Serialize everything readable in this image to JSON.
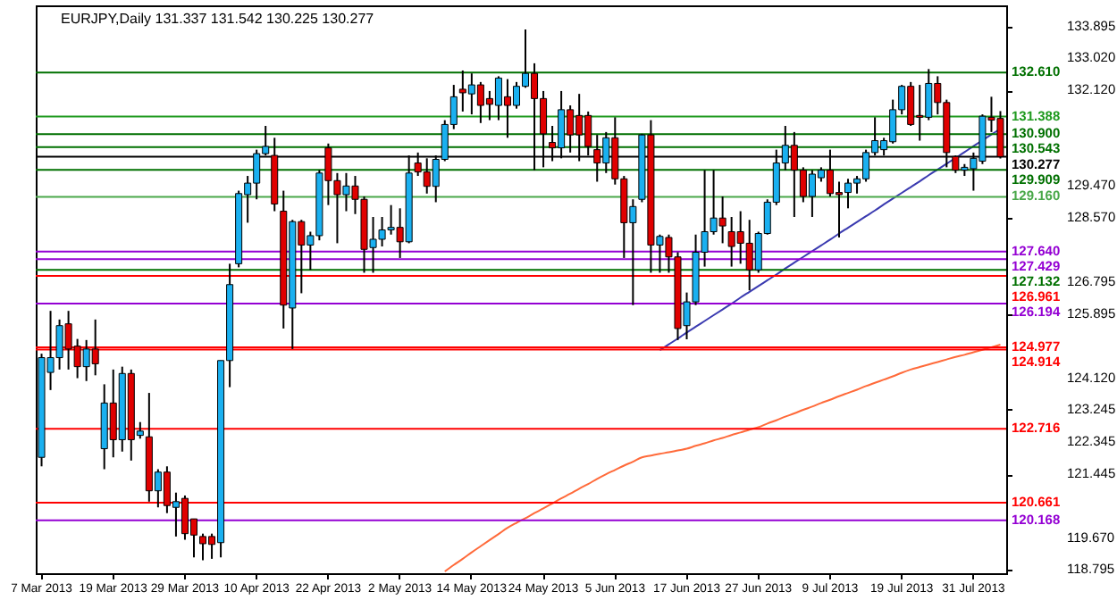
{
  "chart_data": {
    "type": "candlestick",
    "title": "EURJPY,Daily  131.337 131.542 130.225 130.277",
    "categories": [
      "7 Mar 2013",
      null,
      null,
      null,
      null,
      null,
      null,
      null,
      "19 Mar 2013",
      null,
      null,
      null,
      null,
      null,
      null,
      null,
      "29 Mar 2013",
      null,
      null,
      null,
      null,
      null,
      null,
      null,
      "10 Apr 2013",
      null,
      null,
      null,
      null,
      null,
      null,
      null,
      "22 Apr 2013",
      null,
      null,
      null,
      null,
      null,
      null,
      null,
      "2 May 2013",
      null,
      null,
      null,
      null,
      null,
      null,
      null,
      "14 May 2013",
      null,
      null,
      null,
      null,
      null,
      null,
      null,
      "24 May 2013",
      null,
      null,
      null,
      null,
      null,
      null,
      null,
      "5 Jun 2013",
      null,
      null,
      null,
      null,
      null,
      null,
      null,
      "17 Jun 2013",
      null,
      null,
      null,
      null,
      null,
      null,
      null,
      "27 Jun 2013",
      null,
      null,
      null,
      null,
      null,
      null,
      null,
      "9 Jul 2013",
      null,
      null,
      null,
      null,
      null,
      null,
      null,
      "19 Jul 2013",
      null,
      null,
      null,
      null,
      null,
      null,
      null,
      "31 Jul 2013",
      null,
      null,
      null
    ],
    "ohlc": [
      [
        121.92,
        124.8,
        121.67,
        124.69
      ],
      [
        124.28,
        125.99,
        123.79,
        124.69
      ],
      [
        124.69,
        125.75,
        124.36,
        125.58
      ],
      [
        125.63,
        125.99,
        124.36,
        124.93
      ],
      [
        125.01,
        125.21,
        124.12,
        124.44
      ],
      [
        124.44,
        125.18,
        124.04,
        124.93
      ],
      [
        124.93,
        125.75,
        124.2,
        124.52
      ],
      [
        122.16,
        123.95,
        121.59,
        123.43
      ],
      [
        123.43,
        124.36,
        121.92,
        122.41
      ],
      [
        122.41,
        124.44,
        122.08,
        124.25
      ],
      [
        124.25,
        124.36,
        121.83,
        122.41
      ],
      [
        122.53,
        122.9,
        122.44,
        122.65
      ],
      [
        122.49,
        123.71,
        120.69,
        120.99
      ],
      [
        120.99,
        121.59,
        120.53,
        121.51
      ],
      [
        121.51,
        121.67,
        120.37,
        120.58
      ],
      [
        120.53,
        120.94,
        119.72,
        120.69
      ],
      [
        120.78,
        120.86,
        119.63,
        119.8
      ],
      [
        120.21,
        120.21,
        119.14,
        119.76
      ],
      [
        119.72,
        119.8,
        119.06,
        119.52
      ],
      [
        119.72,
        119.8,
        119.1,
        119.5
      ],
      [
        119.55,
        124.61,
        119.14,
        124.61
      ],
      [
        124.61,
        127.3,
        123.87,
        126.72
      ],
      [
        127.3,
        129.33,
        127.2,
        129.25
      ],
      [
        129.22,
        129.74,
        128.44,
        129.54
      ],
      [
        129.54,
        130.47,
        129.09,
        130.36
      ],
      [
        130.36,
        131.13,
        130.31,
        130.56
      ],
      [
        130.31,
        130.8,
        128.76,
        128.96
      ],
      [
        128.76,
        129.33,
        125.5,
        126.15
      ],
      [
        126.07,
        128.52,
        124.93,
        128.47
      ],
      [
        128.47,
        128.52,
        126.48,
        127.82
      ],
      [
        127.82,
        128.19,
        127.13,
        128.08
      ],
      [
        128.08,
        129.9,
        127.95,
        129.82
      ],
      [
        130.52,
        130.64,
        128.93,
        129.61
      ],
      [
        129.61,
        129.82,
        127.87,
        129.22
      ],
      [
        129.22,
        129.82,
        128.76,
        129.46
      ],
      [
        129.46,
        129.74,
        128.68,
        129.09
      ],
      [
        129.09,
        129.17,
        127.05,
        127.7
      ],
      [
        127.75,
        128.6,
        127.05,
        127.98
      ],
      [
        127.98,
        128.6,
        127.78,
        128.24
      ],
      [
        128.24,
        128.93,
        128.11,
        128.31
      ],
      [
        128.31,
        128.84,
        127.46,
        127.91
      ],
      [
        127.91,
        130.31,
        127.87,
        129.82
      ],
      [
        130.1,
        130.39,
        129.74,
        129.85
      ],
      [
        129.85,
        130.23,
        129.25,
        129.45
      ],
      [
        129.45,
        130.31,
        129.01,
        130.2
      ],
      [
        130.2,
        131.29,
        130.15,
        131.17
      ],
      [
        131.17,
        132.27,
        131.04,
        131.94
      ],
      [
        132.15,
        132.67,
        131.53,
        132.05
      ],
      [
        132.02,
        132.59,
        131.45,
        132.27
      ],
      [
        132.27,
        132.35,
        131.21,
        131.7
      ],
      [
        131.89,
        132.1,
        131.29,
        131.73
      ],
      [
        131.7,
        132.51,
        131.29,
        132.46
      ],
      [
        131.94,
        132.43,
        130.8,
        131.7
      ],
      [
        131.7,
        132.35,
        131.61,
        132.23
      ],
      [
        132.23,
        133.81,
        132.19,
        132.59
      ],
      [
        132.59,
        132.87,
        129.9,
        131.89
      ],
      [
        131.89,
        132.1,
        129.98,
        130.91
      ],
      [
        130.67,
        131.13,
        130.15,
        130.52
      ],
      [
        130.52,
        132.1,
        130.23,
        131.58
      ],
      [
        131.58,
        131.7,
        130.39,
        130.88
      ],
      [
        131.42,
        132.02,
        130.15,
        130.88
      ],
      [
        131.42,
        131.53,
        130.31,
        130.56
      ],
      [
        130.47,
        130.88,
        129.58,
        130.1
      ],
      [
        130.1,
        130.96,
        129.82,
        130.8
      ],
      [
        130.8,
        131.37,
        129.5,
        129.66
      ],
      [
        129.66,
        129.74,
        127.46,
        128.44
      ],
      [
        128.44,
        129.09,
        126.15,
        128.89
      ],
      [
        129.09,
        130.91,
        129.01,
        130.88
      ],
      [
        130.88,
        131.29,
        127.05,
        127.82
      ],
      [
        127.82,
        128.11,
        127.05,
        128.06
      ],
      [
        128.03,
        128.11,
        127.05,
        127.49
      ],
      [
        127.49,
        127.62,
        125.18,
        125.5
      ],
      [
        125.58,
        126.5,
        125.2,
        126.24
      ],
      [
        126.24,
        128.11,
        126.15,
        127.62
      ],
      [
        127.62,
        129.9,
        127.22,
        128.19
      ],
      [
        128.19,
        129.9,
        128.11,
        128.57
      ],
      [
        128.57,
        129.17,
        127.87,
        128.35
      ],
      [
        128.19,
        128.6,
        127.22,
        127.78
      ],
      [
        128.19,
        128.76,
        127.3,
        127.87
      ],
      [
        127.87,
        128.52,
        126.56,
        127.13
      ],
      [
        127.13,
        128.19,
        127.05,
        128.14
      ],
      [
        128.14,
        129.09,
        128.11,
        129.01
      ],
      [
        129.01,
        130.47,
        128.93,
        130.1
      ],
      [
        130.1,
        131.13,
        129.9,
        130.59
      ],
      [
        130.59,
        130.96,
        128.6,
        129.9
      ],
      [
        129.9,
        129.98,
        129.01,
        129.17
      ],
      [
        129.17,
        129.9,
        128.6,
        129.79
      ],
      [
        129.69,
        129.98,
        129.58,
        129.9
      ],
      [
        129.9,
        130.47,
        129.17,
        129.25
      ],
      [
        129.28,
        129.58,
        128.03,
        129.22
      ],
      [
        129.28,
        129.66,
        128.84,
        129.54
      ],
      [
        129.54,
        129.74,
        129.25,
        129.66
      ],
      [
        129.66,
        130.47,
        129.58,
        130.39
      ],
      [
        130.39,
        131.37,
        130.31,
        130.72
      ],
      [
        130.47,
        130.8,
        130.31,
        130.72
      ],
      [
        130.69,
        131.86,
        130.64,
        131.58
      ],
      [
        131.58,
        132.27,
        131.45,
        132.23
      ],
      [
        132.23,
        132.35,
        131.13,
        131.17
      ],
      [
        131.42,
        132.27,
        130.72,
        131.37
      ],
      [
        131.37,
        132.71,
        131.29,
        132.31
      ],
      [
        132.31,
        132.51,
        131.45,
        131.78
      ],
      [
        131.78,
        131.86,
        129.98,
        130.39
      ],
      [
        130.28,
        130.31,
        129.82,
        129.9
      ],
      [
        129.9,
        130.07,
        129.74,
        129.98
      ],
      [
        129.94,
        130.39,
        129.33,
        130.23
      ],
      [
        130.15,
        131.45,
        130.07,
        131.4
      ],
      [
        131.37,
        131.94,
        130.96,
        131.29
      ],
      [
        131.337,
        131.542,
        130.225,
        130.277
      ]
    ],
    "colors": [
      "#1ab0f0",
      "#1ab0f0",
      "#1ab0f0",
      "#e00000",
      "#e00000",
      "#1ab0f0",
      "#e00000",
      "#1ab0f0",
      "#e00000",
      "#1ab0f0",
      "#e00000",
      "#1ab0f0",
      "#e00000",
      "#1ab0f0",
      "#e00000",
      "#1ab0f0",
      "#e00000",
      "#e00000",
      "#e00000",
      "#e00000",
      "#1ab0f0",
      "#1ab0f0",
      "#1ab0f0",
      "#1ab0f0",
      "#1ab0f0",
      "#1ab0f0",
      "#e00000",
      "#e00000",
      "#1ab0f0",
      "#e00000",
      "#1ab0f0",
      "#1ab0f0",
      "#e00000",
      "#e00000",
      "#1ab0f0",
      "#e00000",
      "#e00000",
      "#1ab0f0",
      "#1ab0f0",
      "#1ab0f0",
      "#e00000",
      "#1ab0f0",
      "#e00000",
      "#e00000",
      "#1ab0f0",
      "#1ab0f0",
      "#1ab0f0",
      "#e00000",
      "#1ab0f0",
      "#e00000",
      "#e00000",
      "#1ab0f0",
      "#e00000",
      "#1ab0f0",
      "#1ab0f0",
      "#e00000",
      "#e00000",
      "#e00000",
      "#1ab0f0",
      "#e00000",
      "#e00000",
      "#e00000",
      "#e00000",
      "#1ab0f0",
      "#e00000",
      "#e00000",
      "#1ab0f0",
      "#1ab0f0",
      "#e00000",
      "#1ab0f0",
      "#e00000",
      "#e00000",
      "#1ab0f0",
      "#1ab0f0",
      "#1ab0f0",
      "#1ab0f0",
      "#e00000",
      "#e00000",
      "#e00000",
      "#e00000",
      "#1ab0f0",
      "#1ab0f0",
      "#1ab0f0",
      "#1ab0f0",
      "#e00000",
      "#e00000",
      "#1ab0f0",
      "#1ab0f0",
      "#e00000",
      "#e00000",
      "#1ab0f0",
      "#1ab0f0",
      "#1ab0f0",
      "#1ab0f0",
      "#1ab0f0",
      "#1ab0f0",
      "#1ab0f0",
      "#e00000",
      "#e00000",
      "#1ab0f0",
      "#e00000",
      "#e00000",
      "#e00000",
      "#1ab0f0",
      "#1ab0f0",
      "#1ab0f0",
      "#e00000",
      "#e00000"
    ],
    "series": [
      {
        "type": "line",
        "color": "#ff6a3a",
        "values": [
          null,
          null,
          null,
          null,
          null,
          null,
          null,
          null,
          null,
          null,
          null,
          null,
          null,
          null,
          null,
          null,
          null,
          null,
          null,
          null,
          null,
          null,
          null,
          null,
          null,
          null,
          null,
          null,
          null,
          null,
          null,
          null,
          null,
          null,
          null,
          null,
          null,
          null,
          null,
          null,
          null,
          null,
          null,
          null,
          null,
          118.75,
          118.93,
          119.1,
          119.28,
          119.45,
          119.62,
          119.79,
          119.96,
          120.1,
          120.23,
          120.37,
          120.5,
          120.64,
          120.78,
          120.91,
          121.05,
          121.18,
          121.32,
          121.45,
          121.57,
          121.69,
          121.8,
          121.92,
          121.97,
          122.02,
          122.06,
          122.11,
          122.16,
          122.24,
          122.31,
          122.39,
          122.46,
          122.54,
          122.61,
          122.69,
          122.76,
          122.86,
          122.95,
          123.05,
          123.14,
          123.24,
          123.33,
          123.43,
          123.52,
          123.62,
          123.71,
          123.8,
          123.9,
          123.99,
          124.08,
          124.17,
          124.27,
          124.36,
          124.43,
          124.5,
          124.57,
          124.64,
          124.71,
          124.77,
          124.84,
          124.91,
          124.98,
          125.05
        ]
      },
      {
        "type": "line",
        "color": "#3a3ab0",
        "values": [
          null,
          null,
          null,
          null,
          null,
          null,
          null,
          null,
          null,
          null,
          null,
          null,
          null,
          null,
          null,
          null,
          null,
          null,
          null,
          null,
          null,
          null,
          null,
          null,
          null,
          null,
          null,
          null,
          null,
          null,
          null,
          null,
          null,
          null,
          null,
          null,
          null,
          null,
          null,
          null,
          null,
          null,
          null,
          null,
          null,
          null,
          null,
          null,
          null,
          null,
          null,
          null,
          null,
          null,
          null,
          null,
          null,
          null,
          null,
          null,
          null,
          null,
          null,
          null,
          null,
          null,
          null,
          null,
          null,
          124.9,
          125.06,
          125.22,
          125.39,
          125.55,
          125.71,
          125.87,
          126.03,
          126.19,
          126.36,
          126.52,
          126.68,
          126.84,
          127.0,
          127.17,
          127.33,
          127.49,
          127.65,
          127.81,
          127.97,
          128.14,
          128.3,
          128.46,
          128.62,
          128.78,
          128.95,
          129.11,
          129.27,
          129.43,
          129.59,
          129.76,
          129.92,
          130.08,
          130.24,
          130.4,
          130.57,
          130.73,
          130.89,
          131.05
        ]
      }
    ],
    "ylim": [
      118.7,
      134.48
    ],
    "yticks": [
      133.895,
      {
        "value": 133.02,
        "label": "133.020"
      },
      {
        "value": 132.12,
        "label": "132.120"
      },
      {
        "value": 129.47,
        "label": "129.470"
      },
      {
        "value": 128.57,
        "label": "128.570"
      },
      126.795,
      125.895,
      {
        "value": 124.12,
        "label": "124.120"
      },
      123.245,
      122.345,
      121.445,
      {
        "value": 119.67,
        "label": "119.670"
      },
      118.795
    ],
    "ref_lines": [
      {
        "axis": "y",
        "value": 132.61,
        "label": "132.610",
        "color": "#007000"
      },
      {
        "axis": "y",
        "value": 131.388,
        "label": "131.388",
        "color": "#1f9a1f"
      },
      {
        "axis": "y",
        "value": 130.9,
        "label": "130.900",
        "color": "#007000"
      },
      {
        "axis": "y",
        "value": 130.543,
        "label": "130.543",
        "color": "#007000"
      },
      {
        "axis": "y",
        "value": 130.277,
        "label": "130.277",
        "color": "#000000"
      },
      {
        "axis": "y",
        "value": 129.909,
        "label": "129.909",
        "color": "#007000"
      },
      {
        "axis": "y",
        "value": 129.16,
        "label": "129.160",
        "color": "#4aa84a"
      },
      {
        "axis": "y",
        "value": 127.64,
        "label": "127.640",
        "color": "#9400d3"
      },
      {
        "axis": "y",
        "value": 127.429,
        "label": "127.429",
        "color": "#9400d3"
      },
      {
        "axis": "y",
        "value": 127.132,
        "label": "127.132",
        "color": "#007000"
      },
      {
        "axis": "y",
        "value": 126.961,
        "label": "126.961",
        "color": "#ff0000"
      },
      {
        "axis": "y",
        "value": 126.194,
        "label": "126.194",
        "color": "#9400d3"
      },
      {
        "axis": "y",
        "value": 124.977,
        "label": "124.977",
        "color": "#ff0000"
      },
      {
        "axis": "y",
        "value": 124.914,
        "label": "124.914",
        "color": "#ff0000"
      },
      {
        "axis": "y",
        "value": 122.716,
        "label": "122.716",
        "color": "#ff0000"
      },
      {
        "axis": "y",
        "value": 120.661,
        "label": "120.661",
        "color": "#ff0000"
      },
      {
        "axis": "y",
        "value": 120.168,
        "label": "120.168",
        "color": "#9400d3"
      }
    ],
    "grid": false
  }
}
